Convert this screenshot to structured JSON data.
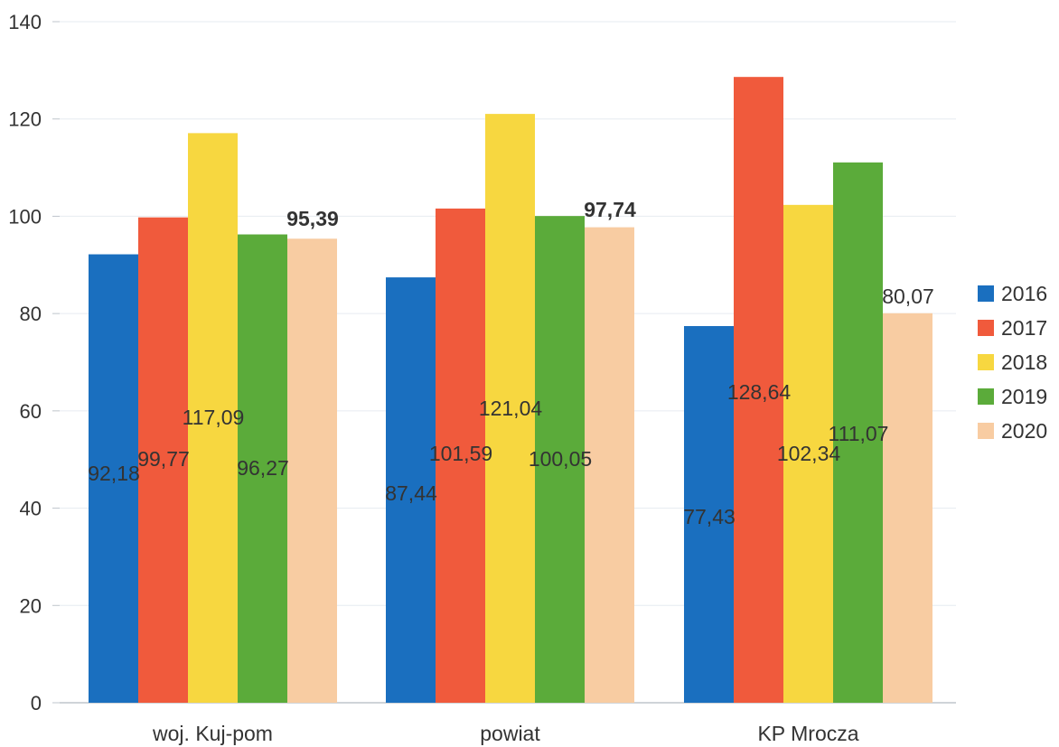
{
  "chart_data": {
    "type": "bar",
    "categories": [
      "woj. Kuj-pom",
      "powiat",
      "KP Mrocza"
    ],
    "series": [
      {
        "name": "2016",
        "color": "#1a6fbf",
        "values": [
          92.18,
          87.44,
          77.43
        ],
        "labels": [
          "92,18",
          "87,44",
          "77,43"
        ]
      },
      {
        "name": "2017",
        "color": "#f05a3c",
        "values": [
          99.77,
          101.59,
          128.64
        ],
        "labels": [
          "99,77",
          "101,59",
          "128,64"
        ]
      },
      {
        "name": "2018",
        "color": "#f7d740",
        "values": [
          117.09,
          121.04,
          102.34
        ],
        "labels": [
          "117,09",
          "121,04",
          "102,34"
        ]
      },
      {
        "name": "2019",
        "color": "#5bab3a",
        "values": [
          96.27,
          100.05,
          111.07
        ],
        "labels": [
          "96,27",
          "100,05",
          "111,07"
        ]
      },
      {
        "name": "2020",
        "color": "#f8cca2",
        "values": [
          95.39,
          97.74,
          80.07
        ],
        "labels": [
          "95,39",
          "97,74",
          "80,07"
        ],
        "bold_labels": [
          true,
          true,
          false
        ]
      }
    ],
    "ylim": [
      0,
      140
    ],
    "yticks": [
      0,
      20,
      40,
      60,
      80,
      100,
      120,
      140
    ],
    "ytick_labels": [
      "0",
      "20",
      "40",
      "60",
      "80",
      "100",
      "120",
      "140"
    ],
    "grid": true,
    "legend_position": "right",
    "title": "",
    "xlabel": "",
    "ylabel": ""
  }
}
